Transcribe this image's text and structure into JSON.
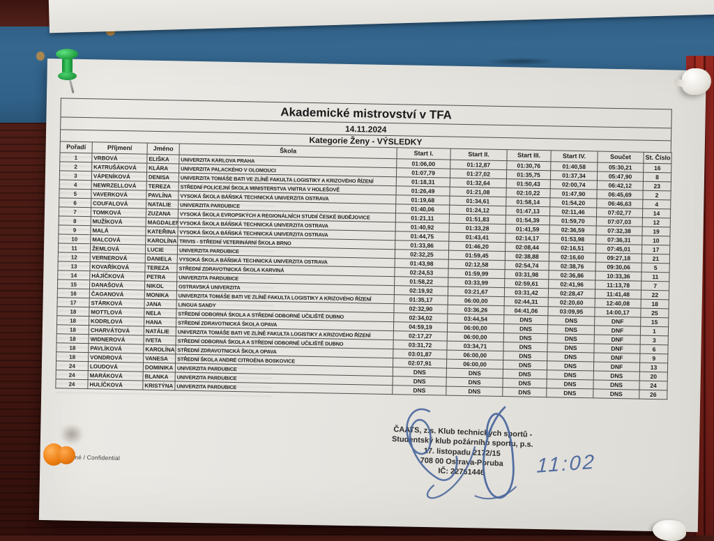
{
  "scene": {
    "wall_blue_color": "#35678f",
    "wall_red_color": "#942721",
    "wall_dark_color": "#451a14",
    "ink_color": "#44639b",
    "pins": [
      {
        "name": "green-pushpin",
        "color": "#1f9e3f",
        "position": "top-left"
      },
      {
        "name": "white-pushpin",
        "color": "#e9e6df",
        "position": "top-right"
      },
      {
        "name": "orange-pushpin",
        "color": "#ef7f14",
        "position": "bottom-left"
      },
      {
        "name": "white-pushpin",
        "color": "#e8e5de",
        "position": "bottom-right"
      }
    ]
  },
  "document": {
    "title": "Akademické mistrovství v TFA",
    "date": "14.11.2024",
    "category": "Kategorie Ženy - VÝSLEDKY",
    "confidential_note": "Důvěrné / Confidential",
    "handwritten_time": "11:02",
    "columns": [
      "Pořadí",
      "Příjmení",
      "Jméno",
      "Škola",
      "Start I.",
      "Start II.",
      "Start III.",
      "Start IV.",
      "Součet",
      "St. Číslo"
    ],
    "rows": [
      [
        "1",
        "VRBOVÁ",
        "ELIŠKA",
        "UNIVERZITA KARLOVA PRAHA",
        "01:06,00",
        "01:12,87",
        "01:30,76",
        "01:40,58",
        "05:30,21",
        "16"
      ],
      [
        "2",
        "KATRUŠÁKOVÁ",
        "KLÁRA",
        "UNIVERZITA PALACKÉHO V OLOMOUCI",
        "01:07,79",
        "01:27,02",
        "01:35,75",
        "01:37,34",
        "05:47,90",
        "8"
      ],
      [
        "3",
        "VÁPENÍKOVÁ",
        "DENISA",
        "UNIVERZITA TOMÁŠE BATI VE ZLÍNĚ FAKULTA LOGISTIKY A KRIZOVÉHO ŘÍZENÍ",
        "01:18,31",
        "01:32,64",
        "01:50,43",
        "02:00,74",
        "06:42,12",
        "23"
      ],
      [
        "4",
        "NEWRZELLOVÁ",
        "TEREZA",
        "STŘEDNÍ POLICEJNÍ ŠKOLA MINISTERSTVA VNITRA V HOLEŠOVĚ",
        "01:26,49",
        "01:21,08",
        "02:10,22",
        "01:47,90",
        "06:45,69",
        "2"
      ],
      [
        "5",
        "VAVERKOVÁ",
        "PAVLÍNA",
        "VYSOKÁ ŠKOLA BÁŇSKÁ TECHNICKÁ UNIVERZITA OSTRAVA",
        "01:19,68",
        "01:34,61",
        "01:58,14",
        "01:54,20",
        "06:46,63",
        "4"
      ],
      [
        "6",
        "COUFALOVÁ",
        "NATALIE",
        "UNIVERZITA PARDUBICE",
        "01:40,06",
        "01:24,12",
        "01:47,13",
        "02:11,46",
        "07:02,77",
        "14"
      ],
      [
        "7",
        "TOMKOVÁ",
        "ZUZANA",
        "VYSOKÁ ŠKOLA EVROPSKÝCH A REGIONÁLNÍCH STUDIÍ ČESKÉ BUDĚJOVICE",
        "01:21,11",
        "01:51,83",
        "01:54,39",
        "01:59,70",
        "07:07,03",
        "12"
      ],
      [
        "8",
        "MUŽÍKOVÁ",
        "MAGDALENA",
        "VYSOKÁ ŠKOLA BÁŇSKÁ TECHNICKÁ UNIVERZITA OSTRAVA",
        "01:40,92",
        "01:33,28",
        "01:41,59",
        "02:36,59",
        "07:32,38",
        "19"
      ],
      [
        "9",
        "MALÁ",
        "KATEŘINA",
        "VYSOKÁ ŠKOLA BÁŇSKÁ TECHNICKÁ UNIVERZITA OSTRAVA",
        "01:44,75",
        "01:43,41",
        "02:14,17",
        "01:53,98",
        "07:36,31",
        "10"
      ],
      [
        "10",
        "MALCOVÁ",
        "KAROLÍNA",
        "TRIVIS - STŘEDNÍ VETERINÁRNÍ ŠKOLA BRNO",
        "01:33,86",
        "01:46,20",
        "02:08,44",
        "02:16,51",
        "07:45,01",
        "17"
      ],
      [
        "11",
        "ŽEMLOVÁ",
        "LUCIE",
        "UNIVERZITA PARDUBICE",
        "02:32,25",
        "01:59,45",
        "02:38,88",
        "02:16,60",
        "09:27,18",
        "21"
      ],
      [
        "12",
        "VERNEROVÁ",
        "DANIELA",
        "VYSOKÁ ŠKOLA BÁŇSKÁ TECHNICKÁ UNIVERZITA OSTRAVA",
        "01:43,98",
        "02:12,58",
        "02:54,74",
        "02:38,76",
        "09:30,06",
        "5"
      ],
      [
        "13",
        "KOVAŘÍKOVÁ",
        "TEREZA",
        "STŘEDNÍ ZDRAVOTNICKÁ ŠKOLA KARVINÁ",
        "02:24,53",
        "01:59,99",
        "03:31,98",
        "02:36,86",
        "10:33,36",
        "11"
      ],
      [
        "14",
        "HÁJÍČKOVÁ",
        "PETRA",
        "UNIVERZITA PARDUBICE",
        "01:58,22",
        "03:33,99",
        "02:59,61",
        "02:41,96",
        "11:13,78",
        "7"
      ],
      [
        "15",
        "DANAŠOVÁ",
        "NIKOL",
        "OSTRAVSKÁ UNIVERZITA",
        "02:19,92",
        "03:21,67",
        "03:31,42",
        "02:28,47",
        "11:41,48",
        "22"
      ],
      [
        "16",
        "ČAGANOVÁ",
        "MONIKA",
        "UNIVERZITA TOMÁŠE BATI VE ZLÍNĚ FAKULTA LOGISTIKY A KRIZOVÉHO ŘÍZENÍ",
        "01:35,17",
        "06:00,00",
        "02:44,31",
        "02:20,60",
        "12:40,08",
        "18"
      ],
      [
        "17",
        "STÁRKOVÁ",
        "JANA",
        "LINGUA SANDY",
        "02:32,90",
        "03:36,26",
        "04:41,06",
        "03:09,95",
        "14:00,17",
        "25"
      ],
      [
        "18",
        "MOTTLOVÁ",
        "NELA",
        "STŘEDNÍ ODBORNÁ ŠKOLA A STŘEDNÍ ODBORNÉ UČILIŠTĚ DUBNO",
        "02:34,02",
        "03:44,54",
        "DNS",
        "DNS",
        "DNF",
        "15"
      ],
      [
        "18",
        "KODRLOVÁ",
        "HANA",
        "STŘEDNÍ ZDRAVOTNICKÁ ŠKOLA OPAVA",
        "04:59,19",
        "06:00,00",
        "DNS",
        "DNS",
        "DNF",
        "1"
      ],
      [
        "18",
        "CHARVÁTOVÁ",
        "NATÁLIE",
        "UNIVERZITA TOMÁŠE BATI VE ZLÍNĚ FAKULTA LOGISTIKY A KRIZOVÉHO ŘÍZENÍ",
        "02:17,27",
        "06:00,00",
        "DNS",
        "DNS",
        "DNF",
        "3"
      ],
      [
        "18",
        "WIDNEROVÁ",
        "IVETA",
        "STŘEDNÍ ODBORNÁ ŠKOLA A STŘEDNÍ ODBORNÉ UČILIŠTĚ DUBNO",
        "03:31,72",
        "03:34,71",
        "DNS",
        "DNS",
        "DNF",
        "6"
      ],
      [
        "18",
        "PAVLÍKOVÁ",
        "KAROLÍNA",
        "STŘEDNÍ ZDRAVOTNICKÁ ŠKOLA OPAVA",
        "03:01,87",
        "06:00,00",
        "DNS",
        "DNS",
        "DNF",
        "9"
      ],
      [
        "18",
        "VONDROVÁ",
        "VANESA",
        "STŘEDNÍ ŠKOLA ANDRÉ CITROËNA BOSKOVICE",
        "02:07,91",
        "06:00,00",
        "DNS",
        "DNS",
        "DNF",
        "13"
      ],
      [
        "24",
        "LOUDOVÁ",
        "DOMINIKA",
        "UNIVERZITA PARDUBICE",
        "DNS",
        "DNS",
        "DNS",
        "DNS",
        "DNS",
        "20"
      ],
      [
        "24",
        "MARÁKOVÁ",
        "BLANKA",
        "UNIVERZITA PARDUBICE",
        "DNS",
        "DNS",
        "DNS",
        "DNS",
        "DNS",
        "24"
      ],
      [
        "24",
        "HULÍČKOVÁ",
        "KRISTÝNA",
        "UNIVERZITA PARDUBICE",
        "DNS",
        "DNS",
        "DNS",
        "DNS",
        "DNS",
        "26"
      ]
    ],
    "footer": {
      "org_lines": [
        "ČAATS, z.s. Klub technických sportů -",
        "Studentský klub požárního sportu, p.s.",
        "17. listopadu 2172/15",
        "708 00 Ostrava-Poruba",
        "IČ: 22761446"
      ]
    }
  }
}
